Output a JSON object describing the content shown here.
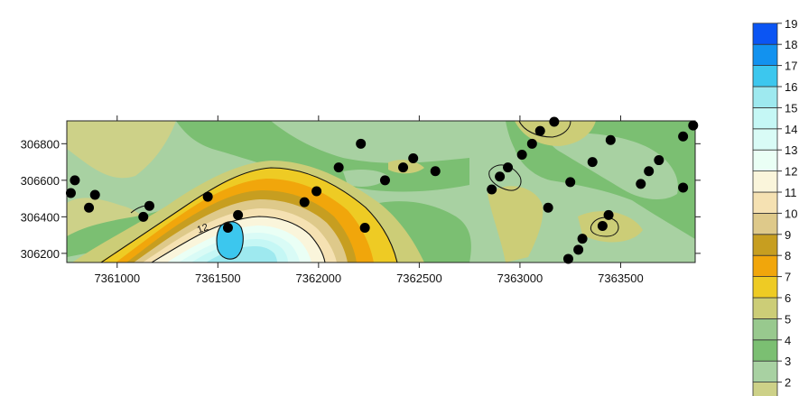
{
  "chart_data": {
    "type": "heatmap",
    "title": "",
    "xlabel": "",
    "ylabel": "",
    "xlim": [
      7360750,
      7363870
    ],
    "ylim": [
      306150,
      306925
    ],
    "x_ticks": [
      {
        "value": 7361000,
        "label": "7361000"
      },
      {
        "value": 7361500,
        "label": "7361500"
      },
      {
        "value": 7362000,
        "label": "7362000"
      },
      {
        "value": 7362500,
        "label": "7362500"
      },
      {
        "value": 7363000,
        "label": "7363000"
      },
      {
        "value": 7363500,
        "label": "7363500"
      }
    ],
    "y_ticks": [
      {
        "value": 306200,
        "label": "306200"
      },
      {
        "value": 306400,
        "label": "306400"
      },
      {
        "value": 306600,
        "label": "306600"
      },
      {
        "value": 306800,
        "label": "306800"
      }
    ],
    "legend": {
      "placement": "right",
      "levels": [
        {
          "label": "2",
          "color": "#cdd188"
        },
        {
          "label": "3",
          "color": "#a8d1a2"
        },
        {
          "label": "4",
          "color": "#7bbf72"
        },
        {
          "label": "5",
          "color": "#98c98e"
        },
        {
          "label": "6",
          "color": "#cccd77"
        },
        {
          "label": "7",
          "color": "#eecb24"
        },
        {
          "label": "8",
          "color": "#f1a60b"
        },
        {
          "label": "9",
          "color": "#c79e20"
        },
        {
          "label": "10",
          "color": "#dec98a"
        },
        {
          "label": "11",
          "color": "#f5e1b2"
        },
        {
          "label": "12",
          "color": "#faf5db"
        },
        {
          "label": "13",
          "color": "#eafff5"
        },
        {
          "label": "14",
          "color": "#d9fbf6"
        },
        {
          "label": "15",
          "color": "#c5f7f5"
        },
        {
          "label": "16",
          "color": "#9ee9ef"
        },
        {
          "label": "17",
          "color": "#3cc7ee"
        },
        {
          "label": "18",
          "color": "#1292ef"
        },
        {
          "label": "19",
          "color": "#0b55f3"
        }
      ]
    },
    "contour_labels": [
      {
        "text": "12",
        "x": 7361430,
        "y": 306320
      }
    ],
    "sample_points": [
      [
        7360770,
        306530
      ],
      [
        7360790,
        306600
      ],
      [
        7360860,
        306450
      ],
      [
        7360890,
        306520
      ],
      [
        7361130,
        306400
      ],
      [
        7361160,
        306460
      ],
      [
        7361450,
        306510
      ],
      [
        7361550,
        306340
      ],
      [
        7361600,
        306410
      ],
      [
        7361930,
        306480
      ],
      [
        7361990,
        306540
      ],
      [
        7362100,
        306670
      ],
      [
        7362210,
        306800
      ],
      [
        7362230,
        306340
      ],
      [
        7362330,
        306600
      ],
      [
        7362420,
        306670
      ],
      [
        7362470,
        306720
      ],
      [
        7362580,
        306650
      ],
      [
        7362860,
        306550
      ],
      [
        7362900,
        306620
      ],
      [
        7362940,
        306670
      ],
      [
        7363010,
        306740
      ],
      [
        7363060,
        306800
      ],
      [
        7363100,
        306870
      ],
      [
        7363140,
        306450
      ],
      [
        7363170,
        306920
      ],
      [
        7363240,
        306170
      ],
      [
        7363250,
        306590
      ],
      [
        7363290,
        306220
      ],
      [
        7363310,
        306280
      ],
      [
        7363360,
        306700
      ],
      [
        7363410,
        306350
      ],
      [
        7363440,
        306410
      ],
      [
        7363450,
        306820
      ],
      [
        7363600,
        306580
      ],
      [
        7363640,
        306650
      ],
      [
        7363690,
        306710
      ],
      [
        7363810,
        306840
      ],
      [
        7363810,
        306560
      ],
      [
        7363860,
        306900
      ]
    ]
  }
}
